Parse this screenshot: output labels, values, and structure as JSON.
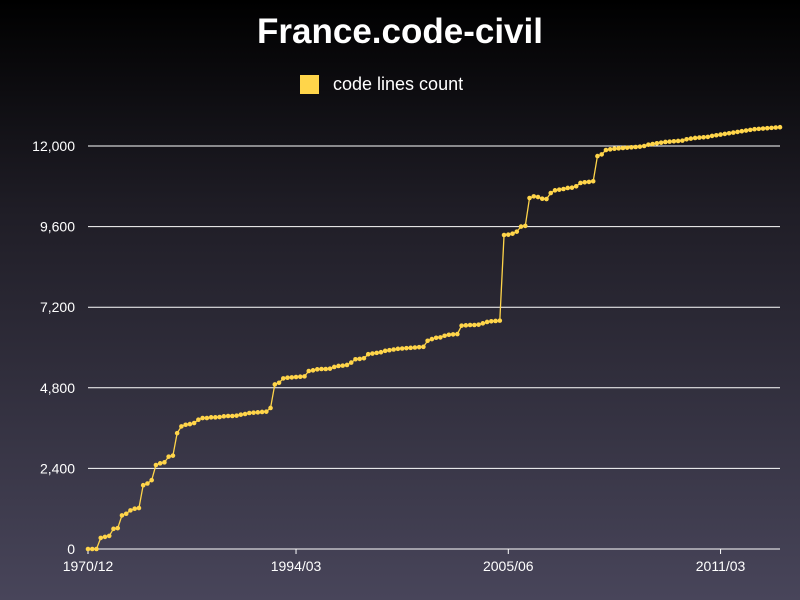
{
  "chart_data": {
    "type": "line",
    "title": "France.code-civil",
    "series": [
      {
        "name": "code lines count",
        "color": "#ffd54a",
        "y": [
          0,
          0,
          0,
          330,
          360,
          390,
          600,
          620,
          1000,
          1050,
          1150,
          1200,
          1220,
          1900,
          1950,
          2050,
          2500,
          2550,
          2580,
          2750,
          2780,
          3450,
          3650,
          3700,
          3720,
          3750,
          3850,
          3900,
          3900,
          3920,
          3920,
          3930,
          3950,
          3960,
          3960,
          3970,
          4000,
          4020,
          4050,
          4060,
          4070,
          4080,
          4090,
          4200,
          4900,
          4950,
          5080,
          5100,
          5110,
          5120,
          5130,
          5140,
          5300,
          5320,
          5350,
          5360,
          5360,
          5370,
          5420,
          5450,
          5460,
          5480,
          5550,
          5650,
          5660,
          5680,
          5800,
          5820,
          5840,
          5860,
          5900,
          5920,
          5940,
          5960,
          5970,
          5980,
          5990,
          6000,
          6010,
          6020,
          6200,
          6250,
          6290,
          6300,
          6350,
          6380,
          6390,
          6400,
          6650,
          6660,
          6670,
          6670,
          6680,
          6720,
          6760,
          6780,
          6790,
          6800,
          9350,
          9360,
          9390,
          9450,
          9600,
          9620,
          10450,
          10500,
          10480,
          10430,
          10420,
          10600,
          10680,
          10700,
          10720,
          10750,
          10760,
          10800,
          10900,
          10920,
          10930,
          10950,
          11700,
          11750,
          11880,
          11900,
          11920,
          11930,
          11940,
          11950,
          11960,
          11970,
          11980,
          12000,
          12040,
          12060,
          12080,
          12100,
          12120,
          12130,
          12140,
          12150,
          12160,
          12200,
          12220,
          12240,
          12250,
          12260,
          12270,
          12300,
          12320,
          12340,
          12360,
          12380,
          12400,
          12420,
          12440,
          12460,
          12480,
          12500,
          12510,
          12520,
          12530,
          12540,
          12550,
          12560
        ]
      }
    ],
    "x_tick_labels": [
      "1970/12",
      "1994/03",
      "2005/06",
      "2011/03"
    ],
    "x_tick_index": [
      0,
      49,
      99,
      149
    ],
    "yticks": [
      0,
      2400,
      4800,
      7200,
      9600,
      12000
    ],
    "ytick_labels": [
      "0",
      "2,400",
      "4,800",
      "7,200",
      "9,600",
      "12,000"
    ],
    "ylim": [
      0,
      12000
    ],
    "grid": true,
    "legend_position": "top-center"
  }
}
